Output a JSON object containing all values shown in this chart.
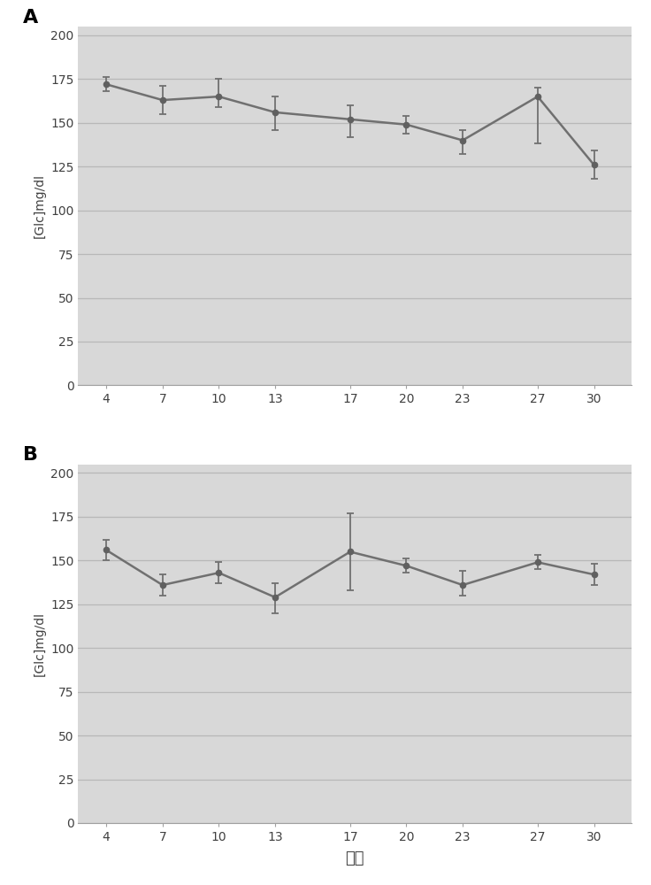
{
  "x": [
    4,
    7,
    10,
    13,
    17,
    20,
    23,
    27,
    30
  ],
  "panel_A": {
    "y": [
      172,
      163,
      165,
      156,
      152,
      149,
      140,
      165,
      126
    ],
    "yerr_upper": [
      4,
      8,
      10,
      9,
      8,
      5,
      6,
      5,
      8
    ],
    "yerr_lower": [
      4,
      8,
      6,
      10,
      10,
      5,
      8,
      27,
      8
    ]
  },
  "panel_B": {
    "y": [
      156,
      136,
      143,
      129,
      155,
      147,
      136,
      149,
      142
    ],
    "yerr_upper": [
      6,
      6,
      6,
      8,
      22,
      4,
      8,
      4,
      6
    ],
    "yerr_lower": [
      6,
      6,
      6,
      9,
      22,
      4,
      6,
      4,
      6
    ]
  },
  "ylabel": "[Glc]mg/dl",
  "xlabel": "天数",
  "yticks": [
    0,
    25,
    50,
    75,
    100,
    125,
    150,
    175,
    200
  ],
  "ylim": [
    0,
    205
  ],
  "figure_bg": "#ffffff",
  "plot_area_color": "#d8d8d8",
  "line_color": "#707070",
  "marker_color": "#606060",
  "grid_color": "#b8b8b8",
  "tick_label_color": "#404040",
  "spine_color": "#a0a0a0",
  "label_A": "A",
  "label_B": "B"
}
